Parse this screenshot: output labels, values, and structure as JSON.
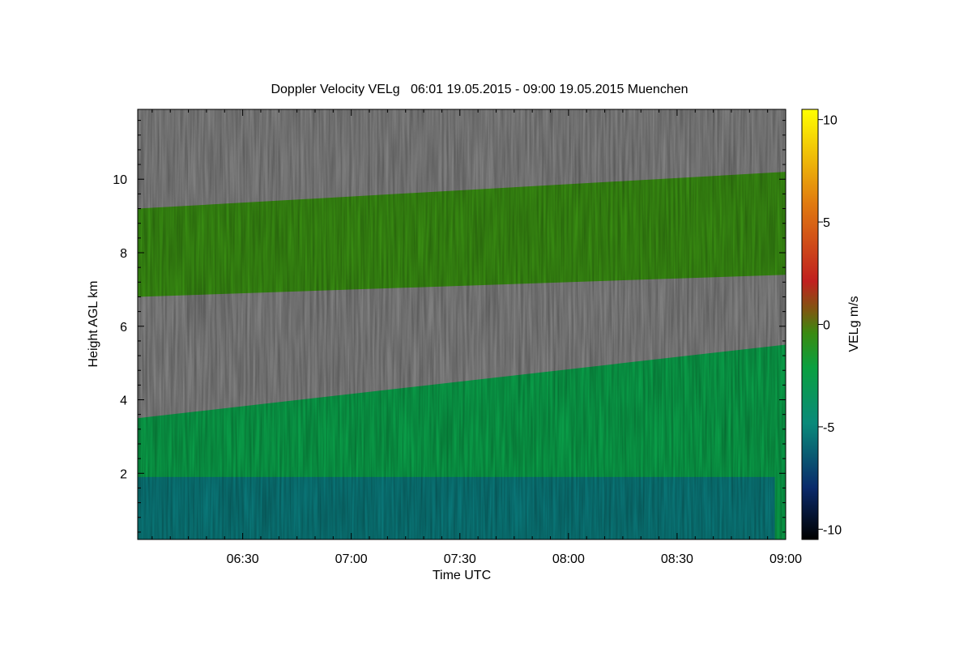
{
  "chart_data": {
    "type": "heatmap",
    "title": "Doppler Velocity VELg   06:01 19.05.2015 - 09:00 19.05.2015 Muenchen",
    "xlabel": "Time UTC",
    "ylabel": "Height AGL km",
    "x_ticks": [
      "06:30",
      "07:00",
      "07:30",
      "08:00",
      "08:30",
      "09:00"
    ],
    "x_tick_values_min": [
      390,
      420,
      450,
      480,
      510,
      540
    ],
    "xlim_min": [
      361,
      540
    ],
    "y_ticks": [
      "2",
      "4",
      "6",
      "8",
      "10"
    ],
    "y_tick_values": [
      2,
      4,
      6,
      8,
      10
    ],
    "ylim": [
      0.2,
      11.9
    ],
    "colorbar": {
      "label": "VELg m/s",
      "ticks": [
        "10",
        "5",
        "0",
        "-5",
        "-10"
      ],
      "tick_values": [
        10,
        5,
        0,
        -5,
        -10
      ],
      "range": [
        -10.5,
        10.5
      ],
      "colors": [
        "#000000",
        "#0a2a6b",
        "#0a8a7a",
        "#0aa040",
        "#3a8a10",
        "#7a5a10",
        "#c02020",
        "#e07a10",
        "#ffff00"
      ]
    },
    "no_data_color": "#7f7f7f",
    "cloud_layers": [
      {
        "name": "upper",
        "time_range_min": [
          361,
          540
        ],
        "base_km": [
          6.8,
          7.4
        ],
        "top_km": [
          9.2,
          10.2
        ],
        "velocity_ms": -0.5
      },
      {
        "name": "lower",
        "time_range_min": [
          361,
          540
        ],
        "base_km": [
          0.2,
          0.2
        ],
        "top_km": [
          3.5,
          5.5
        ],
        "velocity_ms": -2.5
      },
      {
        "name": "near-surface",
        "time_range_min": [
          361,
          537
        ],
        "base_km": [
          0.2,
          0.2
        ],
        "top_km": [
          1.9,
          1.9
        ],
        "velocity_ms": -5.5
      }
    ]
  }
}
